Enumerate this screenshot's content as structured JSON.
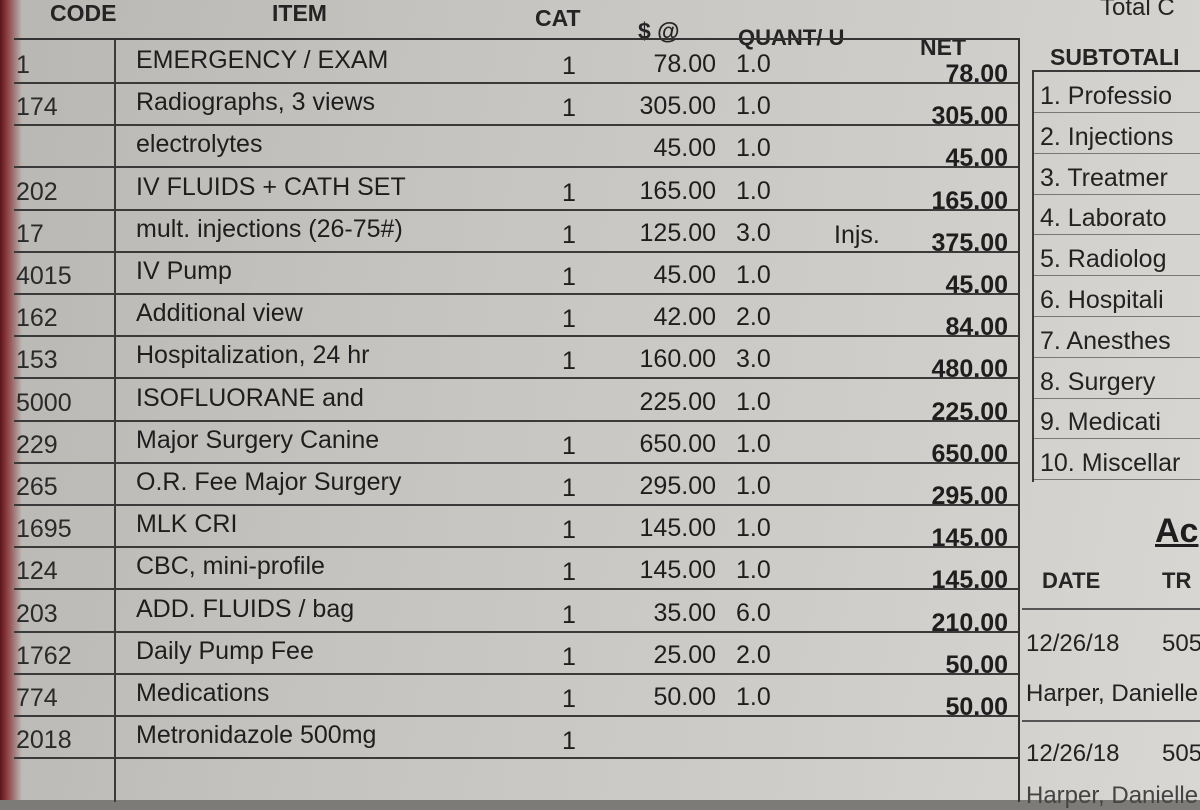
{
  "header": {
    "code": "CODE",
    "item": "ITEM",
    "cat": "CAT",
    "price": "$ @",
    "quant": "QUANT/ U",
    "net": "NET",
    "total": "Total C",
    "subtotal": "SUBTOTALI"
  },
  "rows": [
    {
      "code": "1",
      "item": "EMERGENCY / EXAM",
      "cat": "1",
      "price": "78.00",
      "qty": "1.0",
      "unit": "",
      "net": "78.00"
    },
    {
      "code": "174",
      "item": "Radiographs, 3 views",
      "cat": "1",
      "price": "305.00",
      "qty": "1.0",
      "unit": "",
      "net": "305.00"
    },
    {
      "code": "",
      "item": "electrolytes",
      "cat": "",
      "price": "45.00",
      "qty": "1.0",
      "unit": "",
      "net": "45.00"
    },
    {
      "code": "202",
      "item": "IV FLUIDS + CATH SET",
      "cat": "1",
      "price": "165.00",
      "qty": "1.0",
      "unit": "",
      "net": "165.00"
    },
    {
      "code": "17",
      "item": "mult. injections (26-75#)",
      "cat": "1",
      "price": "125.00",
      "qty": "3.0",
      "unit": "Injs.",
      "net": "375.00"
    },
    {
      "code": "4015",
      "item": "IV Pump",
      "cat": "1",
      "price": "45.00",
      "qty": "1.0",
      "unit": "",
      "net": "45.00"
    },
    {
      "code": "162",
      "item": "Additional view",
      "cat": "1",
      "price": "42.00",
      "qty": "2.0",
      "unit": "",
      "net": "84.00"
    },
    {
      "code": "153",
      "item": "Hospitalization,  24 hr",
      "cat": "1",
      "price": "160.00",
      "qty": "3.0",
      "unit": "",
      "net": "480.00"
    },
    {
      "code": "5000",
      "item": "ISOFLUORANE and",
      "cat": "",
      "price": "225.00",
      "qty": "1.0",
      "unit": "",
      "net": "225.00"
    },
    {
      "code": "229",
      "item": "Major Surgery Canine",
      "cat": "1",
      "price": "650.00",
      "qty": "1.0",
      "unit": "",
      "net": "650.00"
    },
    {
      "code": "265",
      "item": "O.R. Fee Major Surgery",
      "cat": "1",
      "price": "295.00",
      "qty": "1.0",
      "unit": "",
      "net": "295.00"
    },
    {
      "code": "1695",
      "item": "MLK CRI",
      "cat": "1",
      "price": "145.00",
      "qty": "1.0",
      "unit": "",
      "net": "145.00"
    },
    {
      "code": "124",
      "item": "CBC, mini-profile",
      "cat": "1",
      "price": "145.00",
      "qty": "1.0",
      "unit": "",
      "net": "145.00"
    },
    {
      "code": "203",
      "item": "ADD. FLUIDS / bag",
      "cat": "1",
      "price": "35.00",
      "qty": "6.0",
      "unit": "",
      "net": "210.00"
    },
    {
      "code": "1762",
      "item": "Daily Pump Fee",
      "cat": "1",
      "price": "25.00",
      "qty": "2.0",
      "unit": "",
      "net": "50.00"
    },
    {
      "code": "774",
      "item": "Medications",
      "cat": "1",
      "price": "50.00",
      "qty": "1.0",
      "unit": "",
      "net": "50.00"
    },
    {
      "code": "2018",
      "item": "Metronidazole 500mg",
      "cat": "1",
      "price": "",
      "qty": "",
      "unit": "",
      "net": ""
    }
  ],
  "subtotals": [
    "1.  Professio",
    "2.  Injections",
    "3.  Treatmer",
    "4.  Laborato",
    "5.  Radiolog",
    "6.  Hospitali",
    "7.  Anesthes",
    "8.  Surgery",
    "9.  Medicati",
    "10. Miscellar"
  ],
  "account": {
    "title": "Ac",
    "date_label": "DATE",
    "tr_label": "TR",
    "entries": [
      {
        "date": "12/26/18",
        "ref": "505",
        "name": "Harper, Danielle"
      },
      {
        "date": "12/26/18",
        "ref": "505",
        "name": "Harper, Danielle"
      }
    ]
  }
}
